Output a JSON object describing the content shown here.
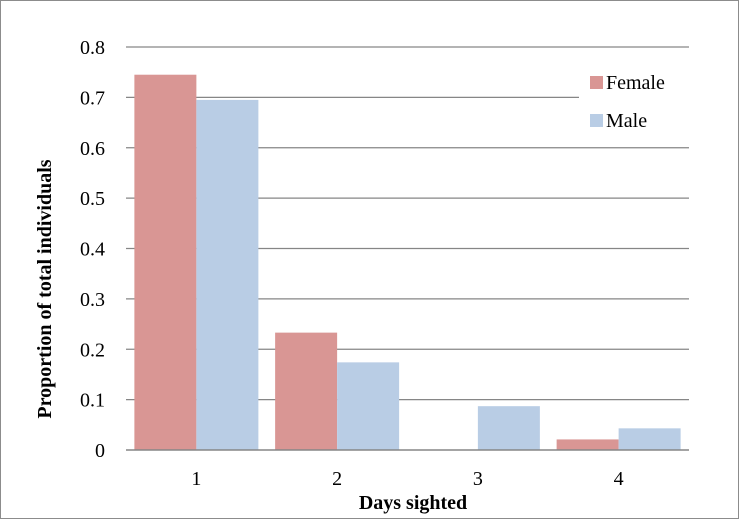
{
  "chart_data": {
    "type": "bar",
    "categories": [
      "1",
      "2",
      "3",
      "4"
    ],
    "series": [
      {
        "name": "Female",
        "values": [
          0.745,
          0.233,
          0.0,
          0.021
        ],
        "color": "#d99694"
      },
      {
        "name": "Male",
        "values": [
          0.695,
          0.174,
          0.087,
          0.043
        ],
        "color": "#b9cde5"
      }
    ],
    "title": "",
    "xlabel": "Days sighted",
    "ylabel": "Proportion of total individuals",
    "ylim": [
      0,
      0.8
    ],
    "yticks": [
      "0",
      "0.1",
      "0.2",
      "0.3",
      "0.4",
      "0.5",
      "0.6",
      "0.7",
      "0.8"
    ],
    "grid": true,
    "legend_position": "top-right",
    "gridline_color": "#868686"
  }
}
